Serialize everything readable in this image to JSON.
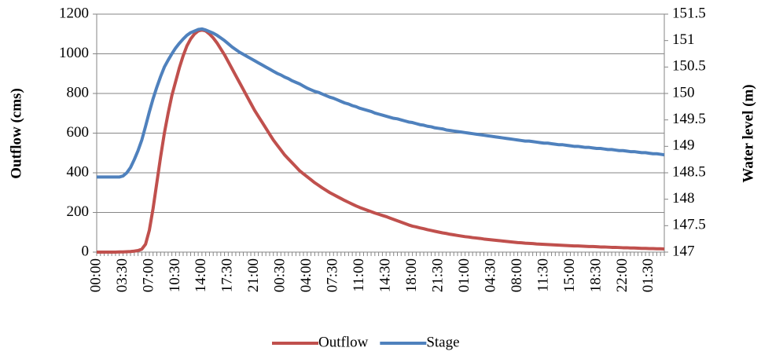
{
  "chart_data": {
    "type": "line",
    "y_label": "Outflow (cms)",
    "y2_label": "Water level (m)",
    "categories": [
      "00:00",
      null,
      null,
      null,
      null,
      null,
      null,
      "03:30",
      null,
      null,
      null,
      null,
      null,
      null,
      "07:00",
      null,
      null,
      null,
      null,
      null,
      null,
      "10:30",
      null,
      null,
      null,
      null,
      null,
      null,
      "14:00",
      null,
      null,
      null,
      null,
      null,
      null,
      "17:30",
      null,
      null,
      null,
      null,
      null,
      null,
      "21:00",
      null,
      null,
      null,
      null,
      null,
      null,
      "00:30",
      null,
      null,
      null,
      null,
      null,
      null,
      "04:00",
      null,
      null,
      null,
      null,
      null,
      null,
      "07:30",
      null,
      null,
      null,
      null,
      null,
      null,
      "11:00",
      null,
      null,
      null,
      null,
      null,
      null,
      "14:30",
      null,
      null,
      null,
      null,
      null,
      null,
      "18:00",
      null,
      null,
      null,
      null,
      null,
      null,
      "21:30",
      null,
      null,
      null,
      null,
      null,
      null,
      "01:00",
      null,
      null,
      null,
      null,
      null,
      null,
      "04:30",
      null,
      null,
      null,
      null,
      null,
      null,
      "08:00",
      null,
      null,
      null,
      null,
      null,
      null,
      "11:30",
      null,
      null,
      null,
      null,
      null,
      null,
      "15:00",
      null,
      null,
      null,
      null,
      null,
      null,
      "18:30",
      null,
      null,
      null,
      null,
      null,
      null,
      "22:00",
      null,
      null,
      null,
      null,
      null,
      null,
      "01:30",
      null,
      null,
      null,
      null
    ],
    "series": [
      {
        "name": "Outflow",
        "color": "#c0504d",
        "values": [
          0,
          0,
          0,
          0,
          0,
          0,
          1,
          1,
          2,
          3,
          5,
          8,
          15,
          40,
          110,
          220,
          350,
          480,
          600,
          700,
          790,
          860,
          930,
          990,
          1040,
          1075,
          1100,
          1115,
          1120,
          1115,
          1100,
          1080,
          1055,
          1025,
          995,
          960,
          925,
          890,
          855,
          820,
          785,
          750,
          715,
          685,
          655,
          625,
          595,
          565,
          540,
          515,
          490,
          470,
          450,
          430,
          410,
          395,
          380,
          365,
          350,
          337,
          324,
          312,
          300,
          290,
          280,
          270,
          260,
          251,
          242,
          233,
          225,
          218,
          211,
          204,
          197,
          191,
          185,
          179,
          172,
          165,
          158,
          151,
          144,
          137,
          131,
          127,
          122,
          118,
          113,
          109,
          105,
          101,
          97,
          94,
          90,
          87,
          84,
          81,
          78,
          76,
          73,
          71,
          69,
          66,
          64,
          62,
          60,
          58,
          56,
          54,
          52,
          50,
          48,
          47,
          45,
          44,
          43,
          41,
          40,
          39,
          38,
          37,
          36,
          35,
          34,
          33,
          32,
          31,
          31,
          30,
          29,
          28,
          28,
          27,
          26,
          26,
          25,
          24,
          24,
          23,
          22,
          22,
          21,
          21,
          20,
          19,
          19,
          18,
          18,
          17,
          17,
          16
        ]
      },
      {
        "name": "Stage",
        "color": "#4f81bd",
        "axis": "y2",
        "values": [
          148.42,
          148.42,
          148.42,
          148.42,
          148.42,
          148.42,
          148.42,
          148.44,
          148.5,
          148.6,
          148.75,
          148.92,
          149.12,
          149.38,
          149.65,
          149.9,
          150.12,
          150.32,
          150.5,
          150.63,
          150.75,
          150.86,
          150.95,
          151.03,
          151.1,
          151.15,
          151.18,
          151.21,
          151.22,
          151.2,
          151.17,
          151.14,
          151.1,
          151.05,
          151.0,
          150.94,
          150.88,
          150.83,
          150.78,
          150.74,
          150.7,
          150.66,
          150.62,
          150.58,
          150.54,
          150.5,
          150.46,
          150.42,
          150.38,
          150.35,
          150.31,
          150.28,
          150.24,
          150.21,
          150.18,
          150.14,
          150.1,
          150.07,
          150.04,
          150.02,
          149.99,
          149.96,
          149.93,
          149.91,
          149.88,
          149.85,
          149.82,
          149.8,
          149.77,
          149.75,
          149.72,
          149.7,
          149.68,
          149.66,
          149.63,
          149.61,
          149.59,
          149.57,
          149.55,
          149.53,
          149.52,
          149.5,
          149.48,
          149.46,
          149.45,
          149.43,
          149.41,
          149.4,
          149.38,
          149.37,
          149.35,
          149.34,
          149.33,
          149.31,
          149.3,
          149.29,
          149.28,
          149.27,
          149.26,
          149.25,
          149.24,
          149.23,
          149.22,
          149.21,
          149.2,
          149.19,
          149.18,
          149.17,
          149.16,
          149.15,
          149.14,
          149.13,
          149.12,
          149.11,
          149.1,
          149.1,
          149.09,
          149.08,
          149.07,
          149.06,
          149.06,
          149.05,
          149.04,
          149.03,
          149.03,
          149.02,
          149.01,
          149.0,
          149.0,
          148.99,
          148.98,
          148.98,
          148.97,
          148.96,
          148.96,
          148.95,
          148.94,
          148.94,
          148.93,
          148.92,
          148.92,
          148.91,
          148.9,
          148.9,
          148.89,
          148.88,
          148.88,
          148.87,
          148.86,
          148.86,
          148.85,
          148.84
        ]
      }
    ],
    "ylim": [
      0,
      1200
    ],
    "yticks": [
      0,
      200,
      400,
      600,
      800,
      1000,
      1200
    ],
    "y2lim": [
      147,
      151.5
    ],
    "y2ticks": [
      147,
      147.5,
      148,
      148.5,
      149,
      149.5,
      150,
      150.5,
      151,
      151.5
    ],
    "grid": true,
    "legend": "bottom"
  }
}
